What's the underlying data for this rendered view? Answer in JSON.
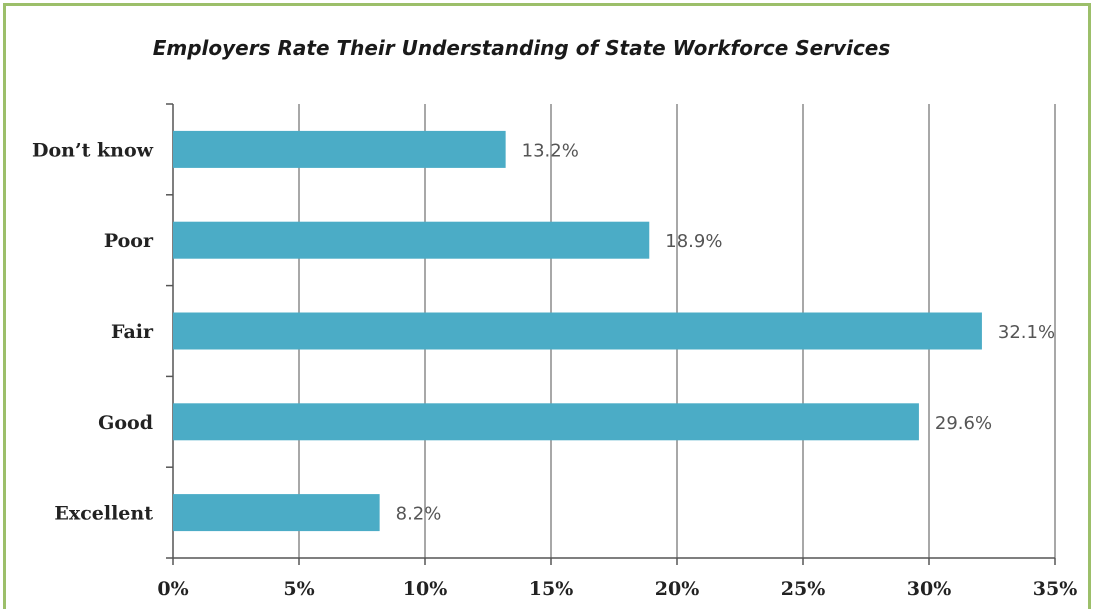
{
  "chart_data": {
    "type": "bar",
    "orientation": "horizontal",
    "title": "Employers Rate Their Understanding of State Workforce Services",
    "categories": [
      "Don’t know",
      "Poor",
      "Fair",
      "Good",
      "Excellent"
    ],
    "values": [
      13.2,
      18.9,
      32.1,
      29.6,
      8.2
    ],
    "data_labels": [
      "13.2%",
      "18.9%",
      "32.1%",
      "29.6%",
      "8.2%"
    ],
    "x_ticks": [
      "0%",
      "5%",
      "10%",
      "15%",
      "20%",
      "25%",
      "30%",
      "35%"
    ],
    "xlim": [
      0,
      35
    ],
    "xlabel": "",
    "ylabel": "",
    "grid": "vertical",
    "legend": "none",
    "colors": {
      "bar": "#4bacc6",
      "grid": "#8c8c8c",
      "frame": "#9cbf6a"
    }
  }
}
